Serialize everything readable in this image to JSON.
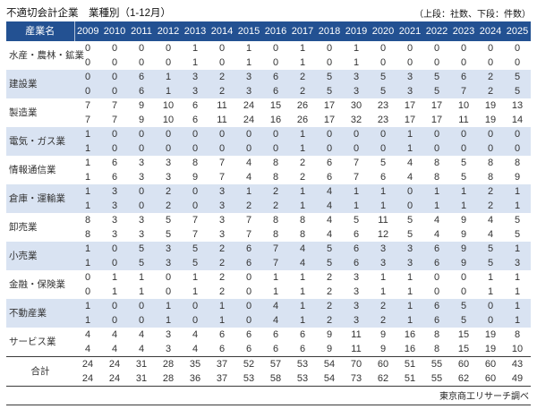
{
  "page": {
    "title": "不適切会計企業　業種別（1-12月）",
    "legend_note": "（上段：社数、下段：件数）",
    "source": "東京商工リサーチ調べ"
  },
  "colors": {
    "header_bg": "#235192",
    "header_text": "#ffffff",
    "band_bg": "#d9e3f2",
    "text": "#333333"
  },
  "chart_data": {
    "type": "table",
    "title": "不適切会計企業 業種別（1-12月）",
    "note": "上段：社数、下段：件数",
    "source": "東京商工リサーチ調べ",
    "row_label_header": "産業名",
    "years": [
      "2009",
      "2010",
      "2011",
      "2012",
      "2013",
      "2014",
      "2015",
      "2016",
      "2017",
      "2018",
      "2019",
      "2020",
      "2021",
      "2022",
      "2023",
      "2024",
      "2025"
    ],
    "rows": [
      {
        "label": "水産・農林・鉱業",
        "companies": [
          0,
          0,
          0,
          0,
          1,
          0,
          1,
          0,
          1,
          0,
          1,
          0,
          0,
          0,
          0,
          0,
          0
        ],
        "cases": [
          0,
          0,
          0,
          0,
          1,
          0,
          1,
          0,
          1,
          0,
          1,
          0,
          0,
          0,
          0,
          0,
          0
        ],
        "total": false
      },
      {
        "label": "建設業",
        "companies": [
          0,
          0,
          6,
          1,
          3,
          2,
          3,
          6,
          2,
          5,
          3,
          5,
          3,
          5,
          6,
          2,
          5
        ],
        "cases": [
          0,
          0,
          6,
          1,
          3,
          2,
          3,
          6,
          2,
          5,
          3,
          5,
          3,
          5,
          7,
          2,
          5
        ],
        "total": false
      },
      {
        "label": "製造業",
        "companies": [
          7,
          7,
          9,
          10,
          6,
          11,
          24,
          15,
          26,
          17,
          30,
          23,
          17,
          17,
          10,
          19,
          13
        ],
        "cases": [
          7,
          7,
          9,
          10,
          6,
          11,
          24,
          16,
          26,
          17,
          32,
          23,
          17,
          17,
          11,
          19,
          14
        ],
        "total": false
      },
      {
        "label": "電気・ガス業",
        "companies": [
          1,
          0,
          0,
          0,
          0,
          0,
          0,
          0,
          1,
          0,
          0,
          0,
          1,
          0,
          0,
          0,
          0
        ],
        "cases": [
          1,
          0,
          0,
          0,
          0,
          0,
          0,
          0,
          1,
          0,
          0,
          0,
          1,
          0,
          0,
          0,
          0
        ],
        "total": false
      },
      {
        "label": "情報通信業",
        "companies": [
          1,
          6,
          3,
          3,
          8,
          7,
          4,
          8,
          2,
          6,
          7,
          5,
          4,
          8,
          5,
          8,
          8
        ],
        "cases": [
          1,
          6,
          3,
          3,
          9,
          7,
          4,
          8,
          2,
          6,
          7,
          6,
          4,
          8,
          5,
          8,
          9
        ],
        "total": false
      },
      {
        "label": "倉庫・運輸業",
        "companies": [
          1,
          3,
          0,
          2,
          0,
          3,
          1,
          2,
          1,
          4,
          1,
          1,
          0,
          1,
          1,
          2,
          1
        ],
        "cases": [
          1,
          3,
          0,
          2,
          0,
          3,
          2,
          2,
          1,
          4,
          1,
          1,
          0,
          1,
          1,
          2,
          1
        ],
        "total": false
      },
      {
        "label": "卸売業",
        "companies": [
          8,
          3,
          3,
          5,
          7,
          3,
          7,
          8,
          8,
          4,
          5,
          11,
          5,
          4,
          9,
          4,
          5
        ],
        "cases": [
          8,
          3,
          3,
          5,
          7,
          3,
          7,
          8,
          8,
          4,
          6,
          12,
          5,
          4,
          9,
          4,
          5
        ],
        "total": false
      },
      {
        "label": "小売業",
        "companies": [
          1,
          0,
          5,
          3,
          5,
          2,
          6,
          7,
          4,
          5,
          6,
          3,
          3,
          6,
          9,
          5,
          1
        ],
        "cases": [
          1,
          0,
          5,
          3,
          5,
          2,
          6,
          7,
          4,
          5,
          6,
          3,
          3,
          6,
          9,
          5,
          3
        ],
        "total": false
      },
      {
        "label": "金融・保険業",
        "companies": [
          0,
          1,
          1,
          0,
          1,
          2,
          0,
          1,
          1,
          2,
          3,
          1,
          1,
          0,
          0,
          1,
          1
        ],
        "cases": [
          0,
          1,
          1,
          0,
          1,
          2,
          0,
          1,
          1,
          2,
          3,
          1,
          1,
          0,
          0,
          1,
          1
        ],
        "total": false
      },
      {
        "label": "不動産業",
        "companies": [
          1,
          0,
          0,
          1,
          0,
          1,
          0,
          4,
          1,
          2,
          3,
          2,
          1,
          6,
          5,
          0,
          1
        ],
        "cases": [
          1,
          0,
          0,
          1,
          0,
          1,
          0,
          4,
          1,
          2,
          3,
          2,
          1,
          6,
          5,
          0,
          1
        ],
        "total": false
      },
      {
        "label": "サービス業",
        "companies": [
          4,
          4,
          4,
          3,
          4,
          6,
          6,
          6,
          6,
          9,
          11,
          9,
          16,
          8,
          15,
          19,
          8
        ],
        "cases": [
          4,
          4,
          4,
          3,
          4,
          6,
          6,
          6,
          6,
          9,
          11,
          9,
          16,
          8,
          15,
          19,
          10
        ],
        "total": false
      },
      {
        "label": "合計",
        "companies": [
          24,
          24,
          31,
          28,
          35,
          37,
          52,
          57,
          53,
          54,
          70,
          60,
          51,
          55,
          60,
          60,
          43
        ],
        "cases": [
          24,
          24,
          31,
          28,
          36,
          37,
          53,
          58,
          53,
          54,
          73,
          62,
          51,
          55,
          62,
          60,
          49
        ],
        "total": true
      }
    ]
  }
}
